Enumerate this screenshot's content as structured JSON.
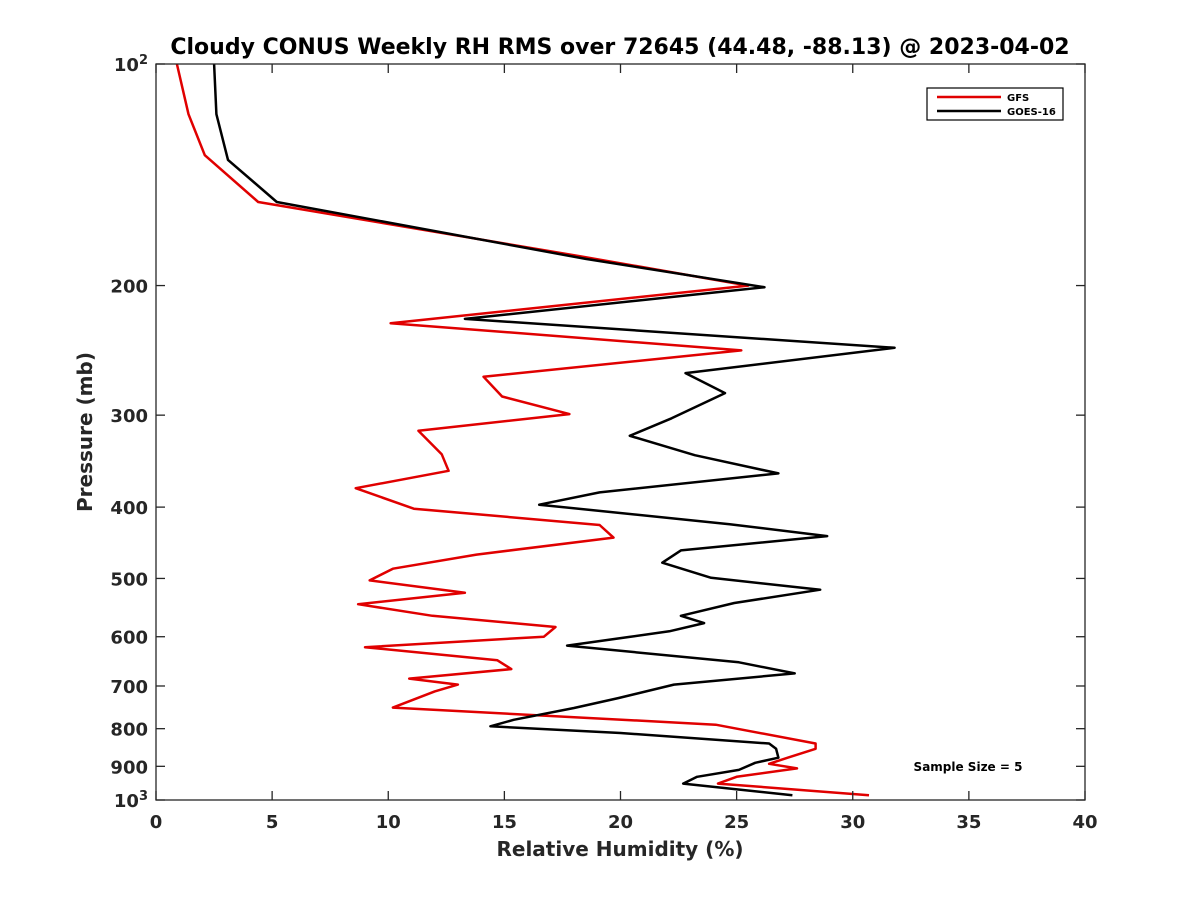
{
  "chart_data": {
    "type": "line",
    "title": "Cloudy CONUS Weekly RH RMS over 72645 (44.48, -88.13) @ 2023-04-02",
    "xlabel": "Relative Humidity (%)",
    "ylabel": "Pressure (mb)",
    "xlim": [
      0,
      40
    ],
    "ylim": [
      100,
      1000
    ],
    "y_scale": "log",
    "y_reversed": true,
    "grid": false,
    "legend_placement": "top-right",
    "x_ticks": [
      "0",
      "5",
      "10",
      "15",
      "20",
      "25",
      "30",
      "35",
      "40"
    ],
    "x_tick_values": [
      0,
      5,
      10,
      15,
      20,
      25,
      30,
      35,
      40
    ],
    "y_ticks": [
      {
        "value": 100,
        "base": "10",
        "exp": "2"
      },
      {
        "value": 200,
        "label": "200"
      },
      {
        "value": 300,
        "label": "300"
      },
      {
        "value": 400,
        "label": "400"
      },
      {
        "value": 500,
        "label": "500"
      },
      {
        "value": 600,
        "label": "600"
      },
      {
        "value": 700,
        "label": "700"
      },
      {
        "value": 800,
        "label": "800"
      },
      {
        "value": 900,
        "label": "900"
      },
      {
        "value": 1000,
        "base": "10",
        "exp": "3"
      }
    ],
    "annotation": "Sample Size = 5",
    "series": [
      {
        "name": "GFS",
        "color": "#e00000",
        "points": [
          [
            0.9,
            100
          ],
          [
            1.4,
            117
          ],
          [
            2.1,
            133
          ],
          [
            4.4,
            154
          ],
          [
            18.5,
            183
          ],
          [
            25.5,
            200
          ],
          [
            10.1,
            225
          ],
          [
            25.2,
            245
          ],
          [
            14.1,
            266
          ],
          [
            14.9,
            283
          ],
          [
            17.8,
            299
          ],
          [
            11.3,
            315
          ],
          [
            12.3,
            339
          ],
          [
            12.6,
            357
          ],
          [
            8.6,
            377
          ],
          [
            11.1,
            402
          ],
          [
            19.1,
            423
          ],
          [
            19.7,
            440
          ],
          [
            13.8,
            464
          ],
          [
            10.2,
            485
          ],
          [
            9.2,
            503
          ],
          [
            13.3,
            523
          ],
          [
            8.7,
            542
          ],
          [
            11.9,
            562
          ],
          [
            17.2,
            582
          ],
          [
            16.7,
            600
          ],
          [
            9.0,
            620
          ],
          [
            14.7,
            646
          ],
          [
            15.3,
            664
          ],
          [
            10.9,
            684
          ],
          [
            13.0,
            697
          ],
          [
            12.0,
            712
          ],
          [
            10.2,
            749
          ],
          [
            24.1,
            790
          ],
          [
            28.4,
            838
          ],
          [
            28.4,
            852
          ],
          [
            27.2,
            876
          ],
          [
            26.4,
            893
          ],
          [
            27.6,
            906
          ],
          [
            25.0,
            930
          ],
          [
            24.2,
            950
          ],
          [
            30.7,
            985
          ]
        ]
      },
      {
        "name": "GOES-16",
        "color": "#000000",
        "points": [
          [
            2.5,
            100
          ],
          [
            2.6,
            117
          ],
          [
            3.1,
            135
          ],
          [
            5.2,
            154
          ],
          [
            18.5,
            184
          ],
          [
            26.2,
            201
          ],
          [
            13.3,
            222
          ],
          [
            31.8,
            243
          ],
          [
            22.8,
            263
          ],
          [
            24.5,
            280
          ],
          [
            22.2,
            303
          ],
          [
            20.4,
            320
          ],
          [
            23.2,
            340
          ],
          [
            26.8,
            360
          ],
          [
            19.1,
            382
          ],
          [
            16.5,
            397
          ],
          [
            24.7,
            422
          ],
          [
            28.9,
            438
          ],
          [
            22.6,
            458
          ],
          [
            21.8,
            476
          ],
          [
            23.9,
            499
          ],
          [
            28.6,
            518
          ],
          [
            24.9,
            540
          ],
          [
            22.6,
            562
          ],
          [
            23.6,
            575
          ],
          [
            22.1,
            590
          ],
          [
            17.7,
            617
          ],
          [
            25.1,
            650
          ],
          [
            27.5,
            673
          ],
          [
            22.3,
            697
          ],
          [
            19.9,
            727
          ],
          [
            18.0,
            750
          ],
          [
            15.4,
            778
          ],
          [
            14.4,
            794
          ],
          [
            20.0,
            811
          ],
          [
            26.4,
            838
          ],
          [
            26.7,
            852
          ],
          [
            26.8,
            876
          ],
          [
            25.8,
            890
          ],
          [
            25.1,
            910
          ],
          [
            23.3,
            930
          ],
          [
            22.7,
            950
          ],
          [
            27.4,
            985
          ]
        ]
      }
    ]
  }
}
